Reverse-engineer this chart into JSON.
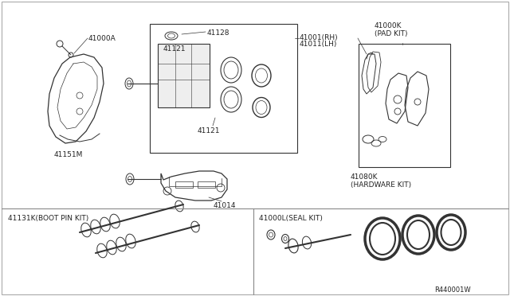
{
  "bg_color": "#ffffff",
  "line_color": "#333333",
  "text_color": "#222222",
  "ref_number": "R440001W",
  "label_41000A": "41000A",
  "label_41151M": "41151M",
  "label_41128": "41128",
  "label_41121a": "41121",
  "label_41121b": "41121",
  "label_41014": "41014",
  "label_rh": "41001(RH)",
  "label_lh": "41011(LH)",
  "label_pad_kit": "41000K\n(PAD KIT)",
  "label_hw_kit": "41080K\n(HARDWARE KIT)",
  "label_boot": "41131K(BOOT PIN KIT)",
  "label_seal": "41000L(SEAL KIT)",
  "font_size": 6.5,
  "font_size_ref": 6.0
}
